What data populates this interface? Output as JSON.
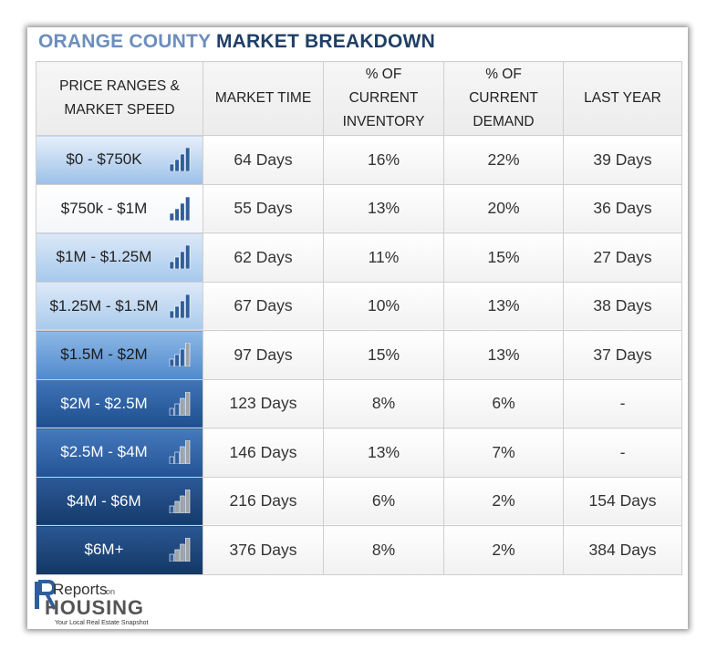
{
  "title": {
    "part1": "ORANGE COUNTY",
    "part2": "MARKET BREAKDOWN"
  },
  "headers": {
    "price_ranges": "PRICE RANGES &",
    "market_speed": "MARKET SPEED",
    "market_time": "MARKET TIME",
    "inventory_l1": "% OF",
    "inventory_l2": "CURRENT",
    "inventory_l3": "INVENTORY",
    "demand_l1": "% OF",
    "demand_l2": "CURRENT",
    "demand_l3": "DEMAND",
    "last_year": "LAST YEAR"
  },
  "rows": [
    {
      "range": "$0 - $750K",
      "market_time": "64 Days",
      "inventory": "16%",
      "demand": "22%",
      "last_year": "39 Days",
      "speed_bars": 4,
      "bg_top": "#e6effa",
      "bg_bot": "#9cc0e8",
      "text_color": "#222222"
    },
    {
      "range": "$750k - $1M",
      "market_time": "55 Days",
      "inventory": "13%",
      "demand": "20%",
      "last_year": "36 Days",
      "speed_bars": 4,
      "bg_top": "#ffffff",
      "bg_bot": "#f4f6f9",
      "text_color": "#222222"
    },
    {
      "range": "$1M - $1.25M",
      "market_time": "62 Days",
      "inventory": "11%",
      "demand": "15%",
      "last_year": "27 Days",
      "speed_bars": 4,
      "bg_top": "#dbe8f7",
      "bg_bot": "#a6c8ec",
      "text_color": "#222222"
    },
    {
      "range": "$1.25M - $1.5M",
      "market_time": "67 Days",
      "inventory": "10%",
      "demand": "13%",
      "last_year": "38 Days",
      "speed_bars": 4,
      "bg_top": "#dde9f8",
      "bg_bot": "#a9caec",
      "text_color": "#222222"
    },
    {
      "range": "$1.5M - $2M",
      "market_time": "97 Days",
      "inventory": "15%",
      "demand": "13%",
      "last_year": "37 Days",
      "speed_bars": 3,
      "bg_top": "#8db8e6",
      "bg_bot": "#4f89cc",
      "text_color": "#1a1a1a"
    },
    {
      "range": "$2M - $2.5M",
      "market_time": "123 Days",
      "inventory": "8%",
      "demand": "6%",
      "last_year": "-",
      "speed_bars": 2,
      "bg_top": "#3f74b8",
      "bg_bot": "#1f4f8e",
      "text_color": "#ffffff"
    },
    {
      "range": "$2.5M - $4M",
      "market_time": "146 Days",
      "inventory": "13%",
      "demand": "7%",
      "last_year": "-",
      "speed_bars": 2,
      "bg_top": "#4679bd",
      "bg_bot": "#225394",
      "text_color": "#ffffff"
    },
    {
      "range": "$4M - $6M",
      "market_time": "216 Days",
      "inventory": "6%",
      "demand": "2%",
      "last_year": "154 Days",
      "speed_bars": 1,
      "bg_top": "#2c5a98",
      "bg_bot": "#143a6b",
      "text_color": "#ffffff"
    },
    {
      "range": "$6M+",
      "market_time": "376 Days",
      "inventory": "8%",
      "demand": "2%",
      "last_year": "384 Days",
      "speed_bars": 1,
      "bg_top": "#2a5793",
      "bg_bot": "#123764",
      "text_color": "#ffffff"
    }
  ],
  "logo": {
    "word1": "Reports",
    "word2": "on",
    "word3": "HOUSING",
    "tagline": "Your Local Real Estate Snapshot"
  },
  "colors": {
    "title_light": "#6c8ebc",
    "title_dark": "#1f3f66",
    "bar_blue": "#2f5e9c",
    "bar_grey": "#9ea3a8"
  }
}
